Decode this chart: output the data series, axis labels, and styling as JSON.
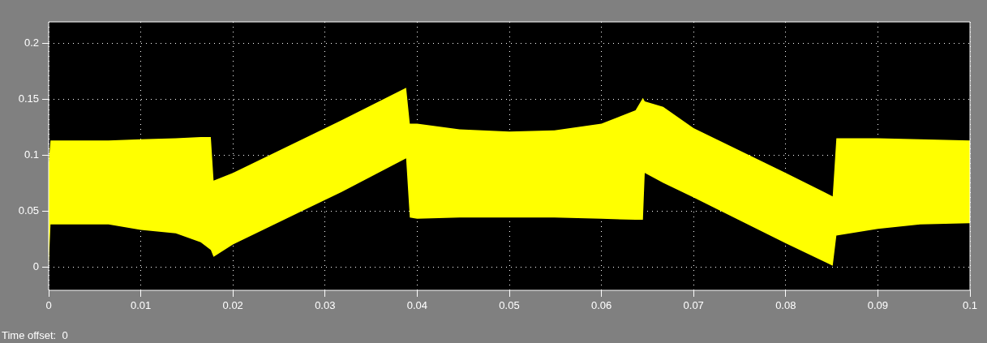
{
  "chart_data": {
    "type": "line",
    "x": [
      0,
      0.0002,
      0.0065,
      0.01,
      0.0138,
      0.0165,
      0.0176,
      0.0179,
      0.02,
      0.0318,
      0.0388,
      0.0392,
      0.04,
      0.0446,
      0.05,
      0.0549,
      0.06,
      0.0637,
      0.0645,
      0.0647,
      0.0667,
      0.07,
      0.08,
      0.0851,
      0.0855,
      0.09,
      0.0946,
      0.1
    ],
    "series": [
      {
        "color": "#ffff00",
        "values": [
          null,
          null,
          null,
          null,
          null,
          null,
          null,
          null,
          null,
          null,
          null,
          null,
          null,
          null,
          null,
          null,
          null,
          null,
          null,
          null,
          null,
          null,
          null,
          null,
          null,
          null,
          null,
          null
        ],
        "lower": [
          0,
          0.038,
          0.038,
          0.033,
          0.03,
          0.022,
          0.015,
          0.009,
          0.02,
          0.067,
          0.097,
          0.044,
          0.043,
          0.044,
          0.044,
          0.044,
          0.043,
          0.042,
          0.042,
          0.084,
          0.075,
          0.062,
          0.021,
          0.001,
          0.028,
          0.034,
          0.038,
          0.039
        ],
        "upper": [
          0.093,
          0.113,
          0.113,
          0.114,
          0.115,
          0.116,
          0.116,
          0.077,
          0.084,
          0.131,
          0.16,
          0.128,
          0.128,
          0.123,
          0.121,
          0.122,
          0.128,
          0.14,
          0.151,
          0.148,
          0.143,
          0.124,
          0.084,
          0.063,
          0.115,
          0.115,
          0.114,
          0.113
        ]
      }
    ],
    "xlim": [
      0,
      0.1
    ],
    "xticks": [
      0,
      0.01,
      0.02,
      0.03,
      0.04,
      0.05,
      0.06,
      0.07,
      0.08,
      0.09,
      0.1
    ],
    "ylim": [
      -0.021,
      0.219
    ],
    "yticks": [
      0,
      0.05,
      0.1,
      0.15,
      0.2
    ],
    "grid": true,
    "legend": false,
    "annotations": [
      "Time offset:  0"
    ]
  }
}
